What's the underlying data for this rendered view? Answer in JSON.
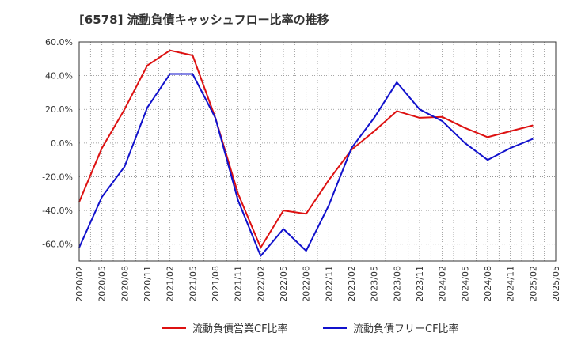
{
  "chart_data": {
    "type": "line",
    "title": "[6578]  流動負債キャッシュフロー比率の推移",
    "xlabel": "",
    "ylabel": "",
    "ylim": [
      -70,
      60
    ],
    "y_ticks": [
      60,
      40,
      20,
      0,
      -20,
      -40,
      -60
    ],
    "y_tick_labels": [
      "60.0%",
      "40.0%",
      "20.0%",
      "0.0%",
      "-20.0%",
      "-40.0%",
      "-60.0%"
    ],
    "x_tick_labels": [
      "2020/02",
      "2020/05",
      "2020/08",
      "2020/11",
      "2021/02",
      "2021/05",
      "2021/08",
      "2021/11",
      "2022/02",
      "2022/05",
      "2022/08",
      "2022/11",
      "2023/02",
      "2023/05",
      "2023/08",
      "2023/11",
      "2024/02",
      "2024/05",
      "2024/08",
      "2024/11",
      "2025/02",
      "2025/05"
    ],
    "grid": true,
    "legend_position": "bottom",
    "series": [
      {
        "name": "流動負債営業CF比率",
        "color": "#dd1111",
        "values": [
          -35,
          -3,
          20,
          46,
          55,
          52,
          15,
          -30,
          -62,
          -40,
          -42,
          -22,
          -4,
          7,
          19,
          15,
          15.5,
          9,
          3.5,
          7,
          10.5,
          null
        ]
      },
      {
        "name": "流動負債フリーCF比率",
        "color": "#1111cc",
        "values": [
          -62,
          -32,
          -14,
          21,
          41,
          41,
          15,
          -34,
          -67,
          -51,
          -64,
          -37,
          -3,
          15,
          36,
          20,
          13,
          0,
          -10,
          -3,
          2.5,
          null
        ]
      }
    ]
  }
}
